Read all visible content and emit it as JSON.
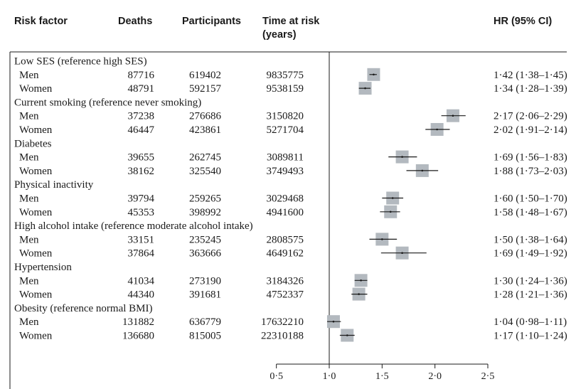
{
  "headers": {
    "risk_factor": "Risk factor",
    "deaths": "Deaths",
    "participants": "Participants",
    "time_at_risk": "Time at risk",
    "time_at_risk_unit": "(years)",
    "hr": "HR (95% CI)"
  },
  "groups": [
    {
      "label": "Low SES (reference high SES)",
      "rows": [
        {
          "sex": "Men",
          "deaths": "87716",
          "participants": "619402",
          "time": "9835775",
          "hr_text": "1·42 (1·38–1·45)"
        },
        {
          "sex": "Women",
          "deaths": "48791",
          "participants": "592157",
          "time": "9538159",
          "hr_text": "1·34 (1·28–1·39)"
        }
      ]
    },
    {
      "label": "Current smoking (reference never smoking)",
      "rows": [
        {
          "sex": "Men",
          "deaths": "37238",
          "participants": "276686",
          "time": "3150820",
          "hr_text": "2·17 (2·06–2·29)"
        },
        {
          "sex": "Women",
          "deaths": "46447",
          "participants": "423861",
          "time": "5271704",
          "hr_text": "2·02 (1·91–2·14)"
        }
      ]
    },
    {
      "label": "Diabetes",
      "rows": [
        {
          "sex": "Men",
          "deaths": "39655",
          "participants": "262745",
          "time": "3089811",
          "hr_text": "1·69 (1·56–1·83)"
        },
        {
          "sex": "Women",
          "deaths": "38162",
          "participants": "325540",
          "time": "3749493",
          "hr_text": "1·88 (1·73–2·03)"
        }
      ]
    },
    {
      "label": "Physical inactivity",
      "rows": [
        {
          "sex": "Men",
          "deaths": "39794",
          "participants": "259265",
          "time": "3029468",
          "hr_text": "1·60 (1·50–1·70)"
        },
        {
          "sex": "Women",
          "deaths": "45353",
          "participants": "398992",
          "time": "4941600",
          "hr_text": "1·58 (1·48–1·67)"
        }
      ]
    },
    {
      "label": "High alcohol intake (reference moderate alcohol intake)",
      "rows": [
        {
          "sex": "Men",
          "deaths": "33151",
          "participants": "235245",
          "time": "2808575",
          "hr_text": "1·50 (1·38–1·64)"
        },
        {
          "sex": "Women",
          "deaths": "37864",
          "participants": "363666",
          "time": "4649162",
          "hr_text": "1·69 (1·49–1·92)"
        }
      ]
    },
    {
      "label": "Hypertension",
      "rows": [
        {
          "sex": "Men",
          "deaths": "41034",
          "participants": "273190",
          "time": "3184326",
          "hr_text": "1·30 (1·24–1·36)"
        },
        {
          "sex": "Women",
          "deaths": "44340",
          "participants": "391681",
          "time": "4752337",
          "hr_text": "1·28 (1·21–1·36)"
        }
      ]
    },
    {
      "label": "Obesity (reference normal BMI)",
      "rows": [
        {
          "sex": "Men",
          "deaths": "131882",
          "participants": "636779",
          "time": "17632210",
          "hr_text": "1·04 (0·98–1·11)"
        },
        {
          "sex": "Women",
          "deaths": "136680",
          "participants": "815005",
          "time": "22310188",
          "hr_text": "1·17 (1·10–1·24)"
        }
      ]
    }
  ],
  "chart_data": {
    "type": "forest",
    "x_ticks": [
      0.5,
      1.0,
      1.5,
      2.0,
      2.5
    ],
    "x_tick_labels": [
      "0·5",
      "1·0",
      "1·5",
      "2·0",
      "2·5"
    ],
    "xlim": [
      0.5,
      2.5
    ],
    "reference_line": 1.0,
    "points": [
      {
        "group": "Low SES (reference high SES)",
        "sex": "Men",
        "hr": 1.42,
        "lo": 1.38,
        "hi": 1.45
      },
      {
        "group": "Low SES (reference high SES)",
        "sex": "Women",
        "hr": 1.34,
        "lo": 1.28,
        "hi": 1.39
      },
      {
        "group": "Current smoking (reference never smoking)",
        "sex": "Men",
        "hr": 2.17,
        "lo": 2.06,
        "hi": 2.29
      },
      {
        "group": "Current smoking (reference never smoking)",
        "sex": "Women",
        "hr": 2.02,
        "lo": 1.91,
        "hi": 2.14
      },
      {
        "group": "Diabetes",
        "sex": "Men",
        "hr": 1.69,
        "lo": 1.56,
        "hi": 1.83
      },
      {
        "group": "Diabetes",
        "sex": "Women",
        "hr": 1.88,
        "lo": 1.73,
        "hi": 2.03
      },
      {
        "group": "Physical inactivity",
        "sex": "Men",
        "hr": 1.6,
        "lo": 1.5,
        "hi": 1.7
      },
      {
        "group": "Physical inactivity",
        "sex": "Women",
        "hr": 1.58,
        "lo": 1.48,
        "hi": 1.67
      },
      {
        "group": "High alcohol intake (reference moderate alcohol intake)",
        "sex": "Men",
        "hr": 1.5,
        "lo": 1.38,
        "hi": 1.64
      },
      {
        "group": "High alcohol intake (reference moderate alcohol intake)",
        "sex": "Women",
        "hr": 1.69,
        "lo": 1.49,
        "hi": 1.92
      },
      {
        "group": "Hypertension",
        "sex": "Men",
        "hr": 1.3,
        "lo": 1.24,
        "hi": 1.36
      },
      {
        "group": "Hypertension",
        "sex": "Women",
        "hr": 1.28,
        "lo": 1.21,
        "hi": 1.36
      },
      {
        "group": "Obesity (reference normal BMI)",
        "sex": "Men",
        "hr": 1.04,
        "lo": 0.98,
        "hi": 1.11
      },
      {
        "group": "Obesity (reference normal BMI)",
        "sex": "Women",
        "hr": 1.17,
        "lo": 1.1,
        "hi": 1.24
      }
    ],
    "marker_color": "#b3b9bf",
    "ci_color": "#1a1a1a"
  }
}
